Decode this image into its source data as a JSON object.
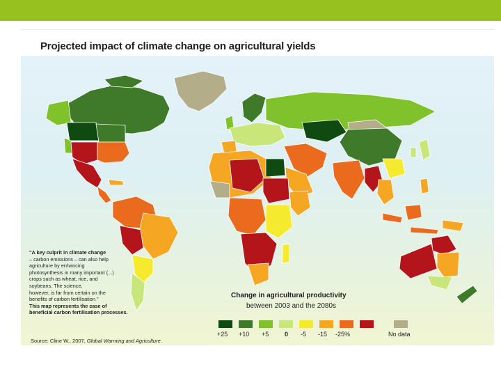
{
  "title": "Projected impact of climate change on agricultural yields",
  "note": {
    "quote_lead": "\"A key culprit in climate change",
    "quote_line2": "– carbon emissions – can also help",
    "quote_line3": "agriculture by enhancing",
    "quote_line4": "photosynthesis in many important (...)",
    "quote_line5": "crops such as wheat, rice, and",
    "quote_line6": "soybeans. The science,",
    "quote_line7": "however, is far from certain on the",
    "quote_line8": "benefits of carbon fertilisation.\"",
    "map_line1": "This map represents the case of",
    "map_line2": "beneficial carbon fertilisation processes."
  },
  "legend": {
    "title_line1": "Change in agricultural productivity",
    "title_line2": "between 2003 and the 2080s",
    "items": [
      {
        "color": "#0f4a10",
        "label": "+25"
      },
      {
        "color": "#3e7a2a",
        "label": "+10"
      },
      {
        "color": "#7fc22b",
        "label": "+5"
      },
      {
        "color": "#c8e67a",
        "label": "0"
      },
      {
        "color": "#f6ea2e",
        "label": "-5"
      },
      {
        "color": "#f5a623",
        "label": "-15"
      },
      {
        "color": "#ea6a1e",
        "label": "-25%"
      },
      {
        "color": "#b4151b",
        "label": ""
      },
      {
        "color": "#b3ad8a",
        "label": "No data"
      }
    ]
  },
  "source": {
    "prefix": "Source: Cline W., 2007, ",
    "title": "Global Warming and Agriculture."
  },
  "colors": {
    "brand_bar": "#97c11f",
    "ocean_top": "#e4f2fa",
    "ocean_bottom": "#f1f5d2"
  }
}
